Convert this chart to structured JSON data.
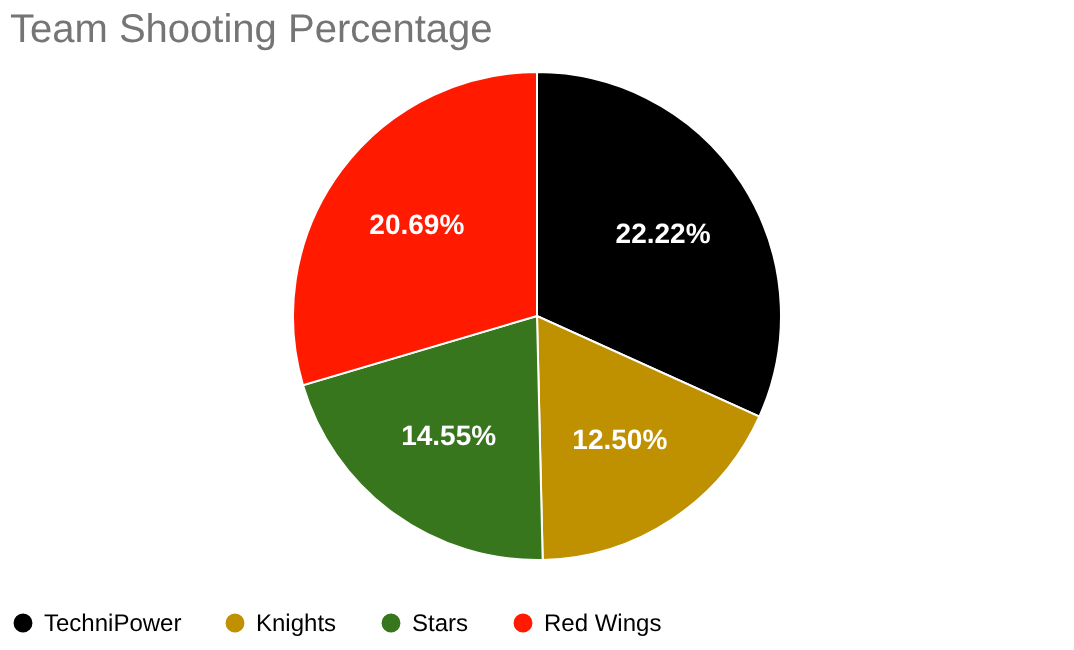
{
  "chart_data": {
    "type": "pie",
    "title": "Team Shooting Percentage",
    "categories": [
      "TechniPower",
      "Knights",
      "Stars",
      "Red Wings"
    ],
    "values": [
      22.22,
      12.5,
      14.55,
      20.69
    ],
    "value_labels": [
      "22.22%",
      "12.50%",
      "14.55%",
      "20.69%"
    ],
    "colors": [
      "#000000",
      "#bf9000",
      "#38761d",
      "#ff1a00"
    ],
    "legend": "bottom"
  }
}
